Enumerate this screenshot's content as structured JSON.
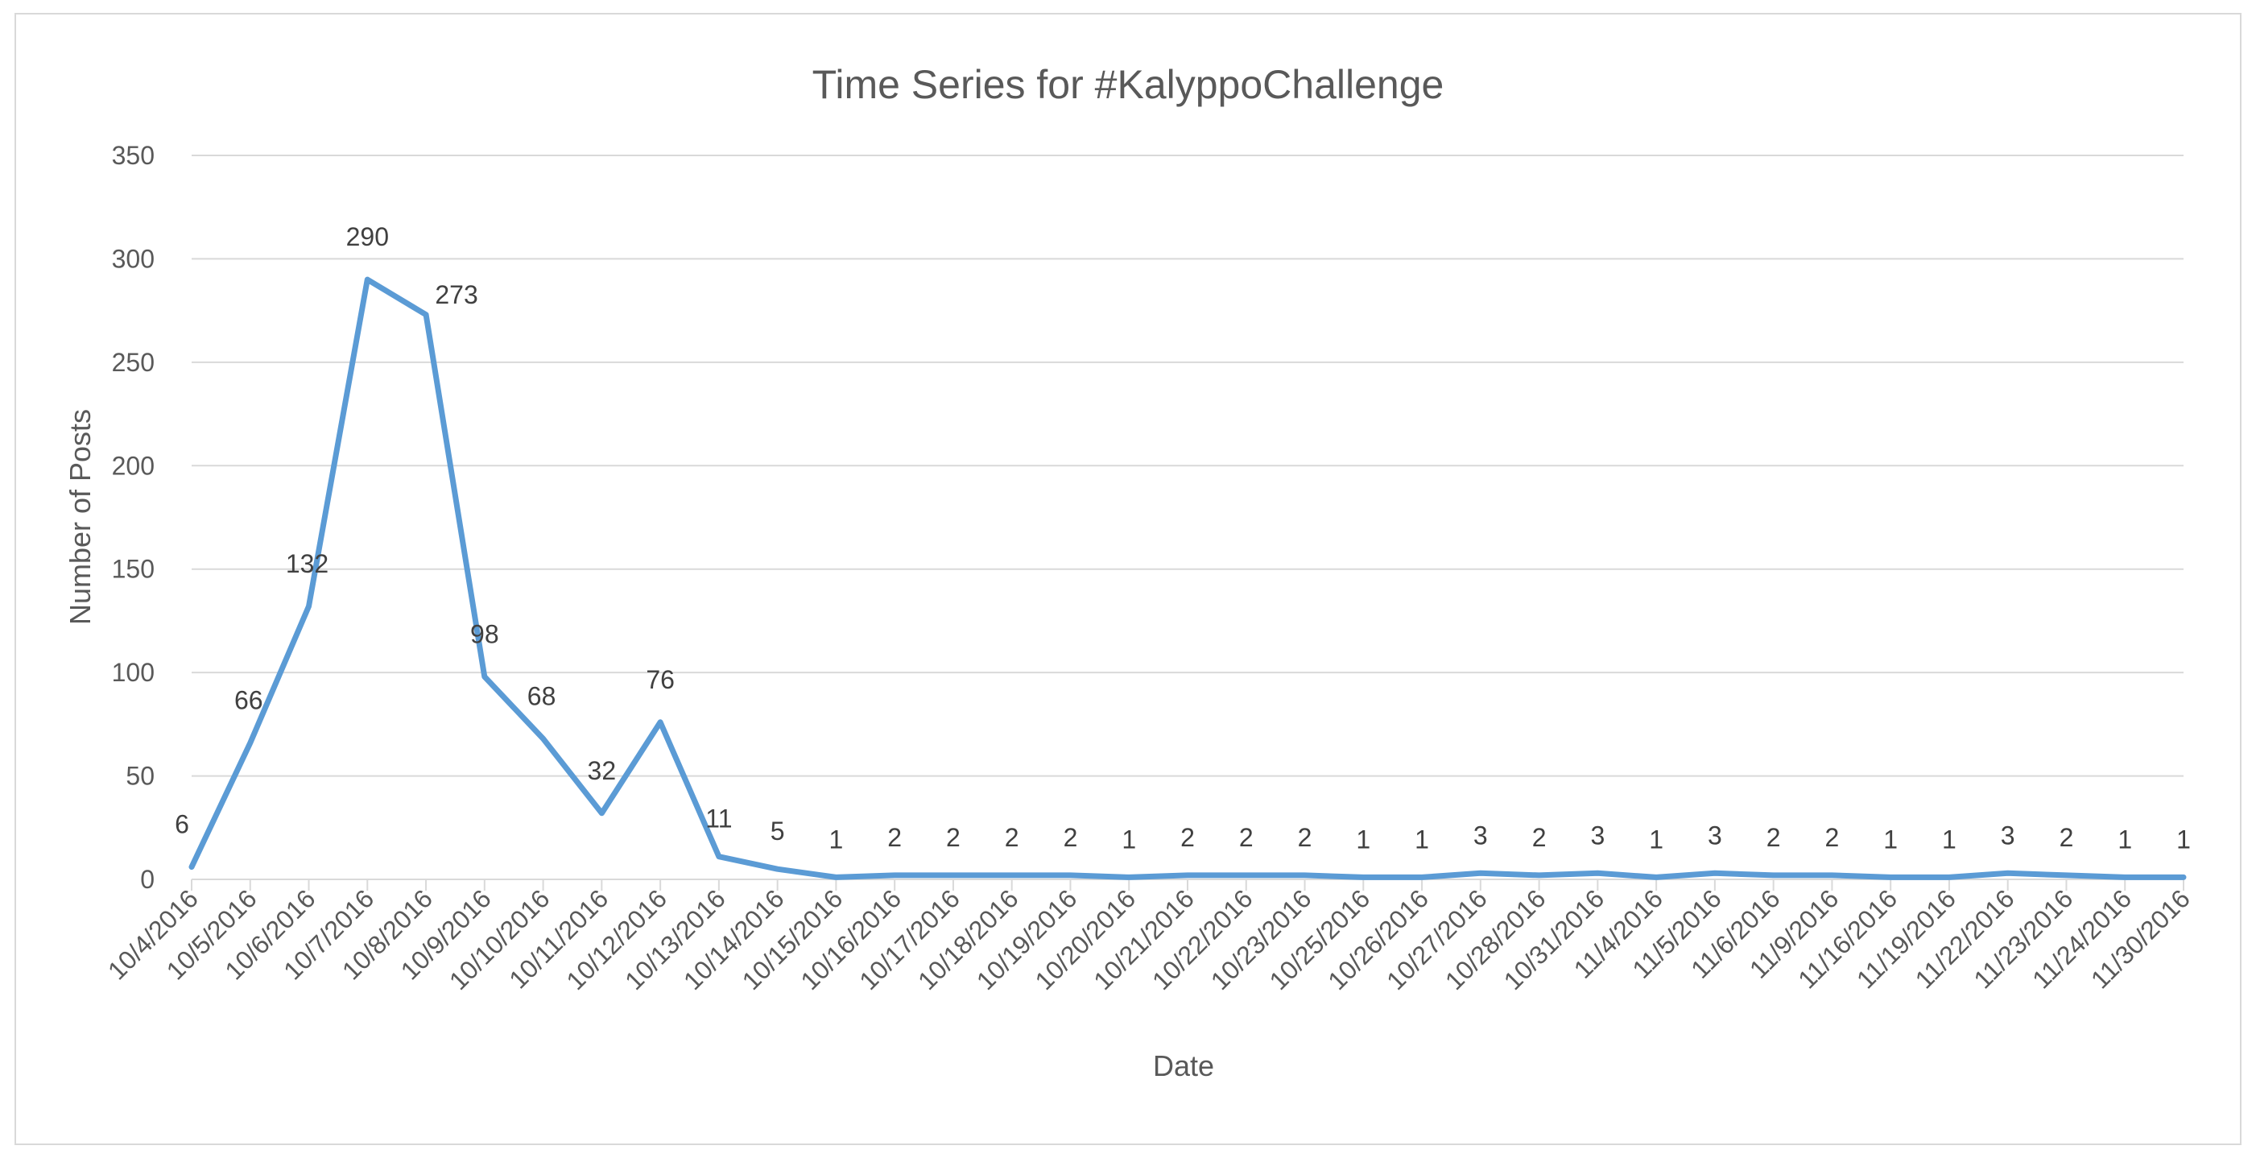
{
  "chart_data": {
    "type": "line",
    "title": "Time Series for #KalyppoChallenge",
    "xlabel": "Date",
    "ylabel": "Number of Posts",
    "ylim": [
      0,
      350
    ],
    "ytick_step": 50,
    "grid": true,
    "line_color": "#5b9bd5",
    "grid_color": "#d9d9d9",
    "categories": [
      "10/4/2016",
      "10/5/2016",
      "10/6/2016",
      "10/7/2016",
      "10/8/2016",
      "10/9/2016",
      "10/10/2016",
      "10/11/2016",
      "10/12/2016",
      "10/13/2016",
      "10/14/2016",
      "10/15/2016",
      "10/16/2016",
      "10/17/2016",
      "10/18/2016",
      "10/19/2016",
      "10/20/2016",
      "10/21/2016",
      "10/22/2016",
      "10/23/2016",
      "10/25/2016",
      "10/26/2016",
      "10/27/2016",
      "10/28/2016",
      "10/31/2016",
      "11/4/2016",
      "11/5/2016",
      "11/6/2016",
      "11/9/2016",
      "11/16/2016",
      "11/19/2016",
      "11/22/2016",
      "11/23/2016",
      "11/24/2016",
      "11/30/2016"
    ],
    "series": [
      {
        "values": [
          6,
          66,
          132,
          290,
          273,
          98,
          68,
          32,
          76,
          11,
          5,
          1,
          2,
          2,
          2,
          2,
          1,
          2,
          2,
          2,
          1,
          1,
          3,
          2,
          3,
          1,
          3,
          2,
          2,
          1,
          1,
          3,
          2,
          1,
          1
        ]
      }
    ]
  }
}
